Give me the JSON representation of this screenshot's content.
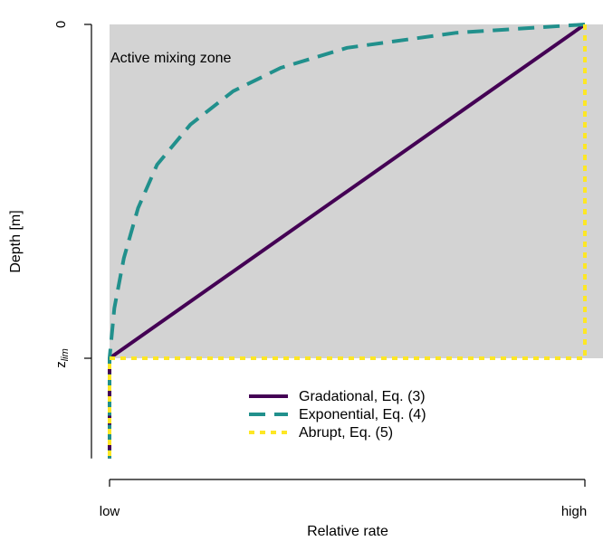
{
  "chart_data": {
    "type": "line",
    "title": "",
    "xlabel": "Relative rate",
    "ylabel": "Depth [m]",
    "x_ticks": [
      "low",
      "high"
    ],
    "y_ticks": {
      "top": "0",
      "zlim_base": "z",
      "zlim_sub": "lim"
    },
    "xlim": [
      0,
      1
    ],
    "depth_range": [
      0,
      1.3
    ],
    "zlim_depth": 1.0,
    "region_annotation": "Active mixing zone",
    "region_color": "#d3d3d3",
    "legend_position": "bottom-center",
    "series": [
      {
        "name": "Gradational, Eq. (3)",
        "color": "#440154",
        "style": "solid",
        "points": [
          [
            1,
            0
          ],
          [
            0,
            1
          ],
          [
            0,
            1.3
          ]
        ]
      },
      {
        "name": "Exponential, Eq. (4)",
        "color": "#21908c",
        "style": "dashed",
        "points": [
          [
            1,
            0
          ],
          [
            0.73,
            0.025
          ],
          [
            0.5,
            0.07
          ],
          [
            0.36,
            0.13
          ],
          [
            0.26,
            0.2
          ],
          [
            0.17,
            0.3
          ],
          [
            0.1,
            0.42
          ],
          [
            0.06,
            0.55
          ],
          [
            0.03,
            0.7
          ],
          [
            0.01,
            0.85
          ],
          [
            0,
            1
          ],
          [
            0,
            1.3
          ]
        ]
      },
      {
        "name": "Abrupt, Eq. (5)",
        "color": "#fde725",
        "style": "dotted",
        "points": [
          [
            1,
            0
          ],
          [
            1,
            1
          ],
          [
            0,
            1
          ],
          [
            0,
            1.3
          ]
        ]
      }
    ]
  }
}
